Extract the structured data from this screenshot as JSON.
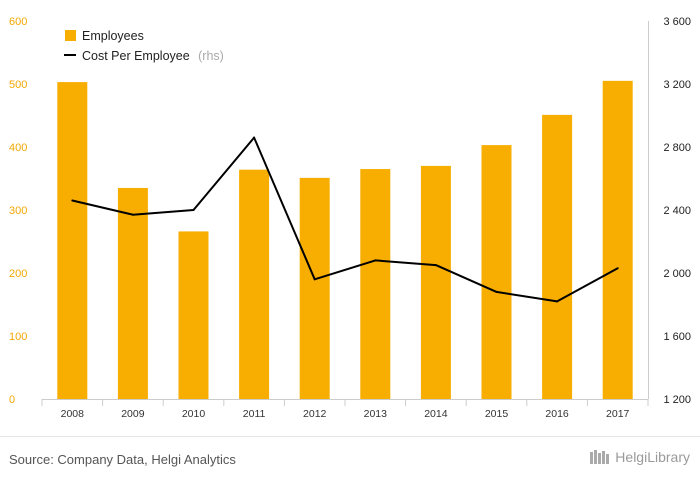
{
  "chart_data": {
    "type": "bar",
    "categories": [
      "2008",
      "2009",
      "2010",
      "2011",
      "2012",
      "2013",
      "2014",
      "2015",
      "2016",
      "2017"
    ],
    "series": [
      {
        "name": "Employees",
        "kind": "bar",
        "axis": "left",
        "color": "#f7ae00",
        "values": [
          503,
          335,
          266,
          364,
          351,
          365,
          370,
          403,
          451,
          505
        ]
      },
      {
        "name": "Cost Per Employee",
        "suffix": "(rhs)",
        "kind": "line",
        "axis": "right",
        "color": "#000000",
        "values": [
          2460,
          2370,
          2400,
          2860,
          1960,
          2080,
          2050,
          1880,
          1820,
          2030
        ]
      }
    ],
    "ylim_left": [
      0,
      600
    ],
    "ylim_right": [
      1200,
      3600
    ],
    "yticks_left": [
      "0",
      "100",
      "200",
      "300",
      "400",
      "500",
      "600"
    ],
    "yticks_right": [
      "1 200",
      "1 600",
      "2 000",
      "2 400",
      "2 800",
      "3 200",
      "3 600"
    ],
    "legend_position": "top-left",
    "grid": false
  },
  "footer": {
    "source": "Source: Company Data, Helgi Analytics",
    "brand": "HelgiLibrary"
  }
}
